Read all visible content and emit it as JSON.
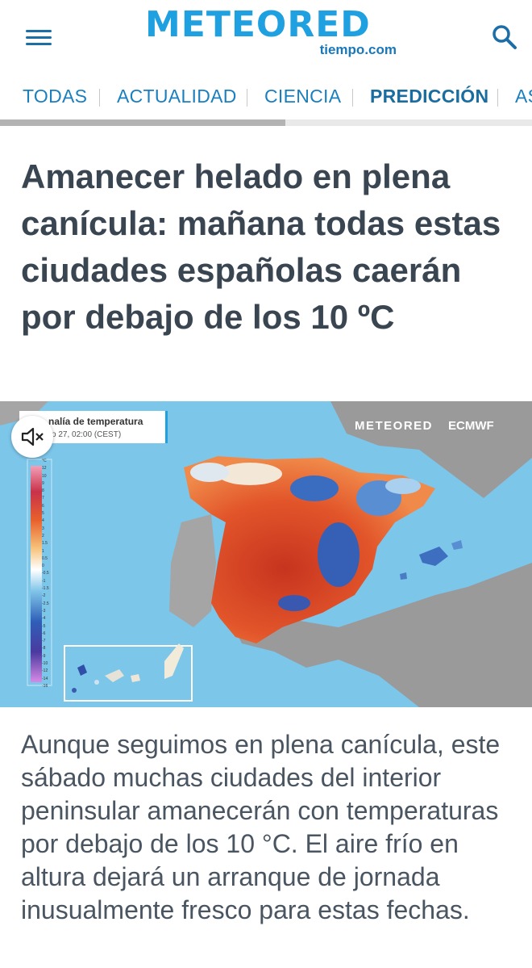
{
  "header": {
    "logo_main": "METEORED",
    "logo_sub": "tiempo.com",
    "colors": {
      "brand": "#1fa0e0",
      "brand_dark": "#1b6ea6"
    }
  },
  "nav": {
    "items": [
      {
        "label": "TODAS"
      },
      {
        "label": "ACTUALIDAD"
      },
      {
        "label": "CIENCIA"
      },
      {
        "label": "PREDICCIÓN"
      },
      {
        "label": "AS"
      }
    ],
    "active": "PREDICCIÓN"
  },
  "article": {
    "title": "Amanecer helado en plena canícula: mañana todas estas ciudades españolas caerán por debajo de los 10 ºC",
    "body": "Aunque seguimos en plena canícula, este sábado muchas ciudades del interior peninsular amanecerán con temperaturas por debajo de los 10 °C. El aire frío en altura dejará un arranque de jornada inusualmente fresco para estas fechas."
  },
  "map": {
    "caption_title": "nalía de temperatura",
    "caption_date": "o 27, 02:00 (CEST)",
    "brand_left": "METEORED",
    "brand_right": "ECMWF",
    "legend_unit": "°C",
    "legend_ticks": [
      "12",
      "10",
      "9",
      "8",
      "7",
      "6",
      "5",
      "4",
      "3",
      "2",
      "1.5",
      "1",
      "0.5",
      "0",
      "-0.5",
      "-1",
      "-1.5",
      "-2",
      "-2.5",
      "-3",
      "-4",
      "-5",
      "-6",
      "-7",
      "-8",
      "-9",
      "-10",
      "-12",
      "-14",
      "-16"
    ]
  }
}
